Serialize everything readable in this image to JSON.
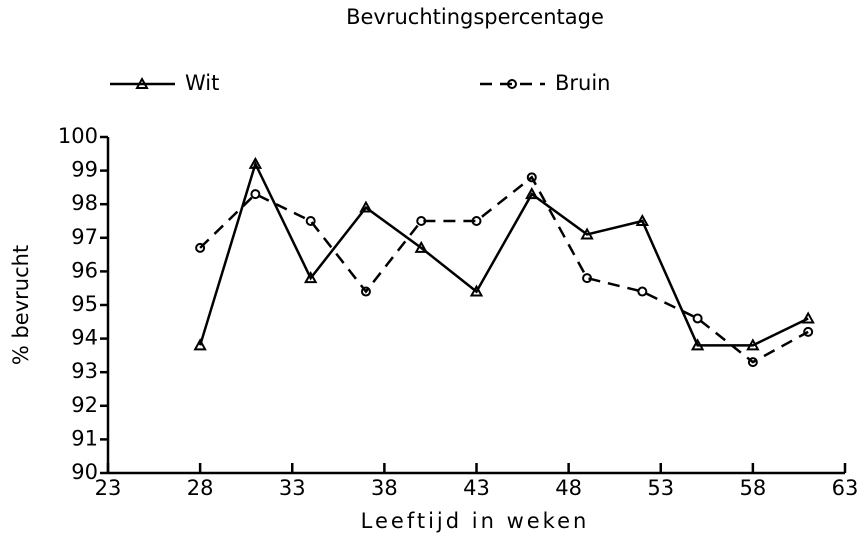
{
  "chart_data": {
    "type": "line",
    "title": "Bevruchtingspercentage",
    "xlabel": "Leeftijd in weken",
    "ylabel": "% bevrucht",
    "x": [
      28,
      31,
      34,
      37,
      40,
      43,
      46,
      49,
      52,
      55,
      58,
      61
    ],
    "series": [
      {
        "name": "Wit",
        "color": "#000000",
        "dash": false,
        "marker": "triangle",
        "values": [
          93.8,
          99.2,
          95.8,
          97.9,
          96.7,
          95.4,
          98.3,
          97.1,
          97.5,
          93.8,
          93.8,
          94.6
        ]
      },
      {
        "name": "Bruin",
        "color": "#000000",
        "dash": true,
        "marker": "circle",
        "values": [
          96.7,
          98.3,
          97.5,
          95.4,
          97.5,
          97.5,
          98.8,
          95.8,
          95.4,
          94.6,
          93.3,
          94.2
        ]
      }
    ],
    "xlim": [
      23,
      63
    ],
    "xticks": [
      23,
      28,
      33,
      38,
      43,
      48,
      53,
      58,
      63
    ],
    "ylim": [
      90,
      100
    ],
    "yticks": [
      90,
      91,
      92,
      93,
      94,
      95,
      96,
      97,
      98,
      99,
      100
    ],
    "grid": false,
    "legend": "top"
  }
}
